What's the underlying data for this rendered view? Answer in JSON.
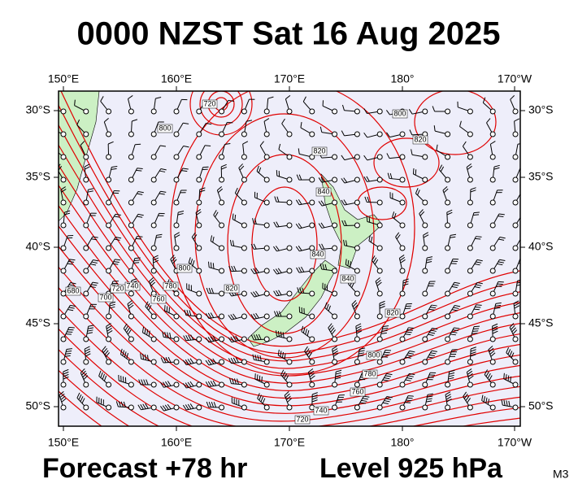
{
  "title": "0000 NZST Sat 16 Aug 2025",
  "lon_labels": [
    "150°E",
    "160°E",
    "170°E",
    "180°",
    "170°W"
  ],
  "lat_labels": [
    "30°S",
    "35°S",
    "40°S",
    "45°S",
    "50°S"
  ],
  "contour_labels": [
    "720",
    "800",
    "820",
    "800",
    "820",
    "840",
    "840",
    "840",
    "820",
    "800",
    "780",
    "760",
    "740",
    "720",
    "700",
    "680",
    "820",
    "800",
    "780",
    "760",
    "740",
    "720"
  ],
  "footer": {
    "forecast": "Forecast +78 hr",
    "level": "Level 925 hPa",
    "model": "M3"
  }
}
